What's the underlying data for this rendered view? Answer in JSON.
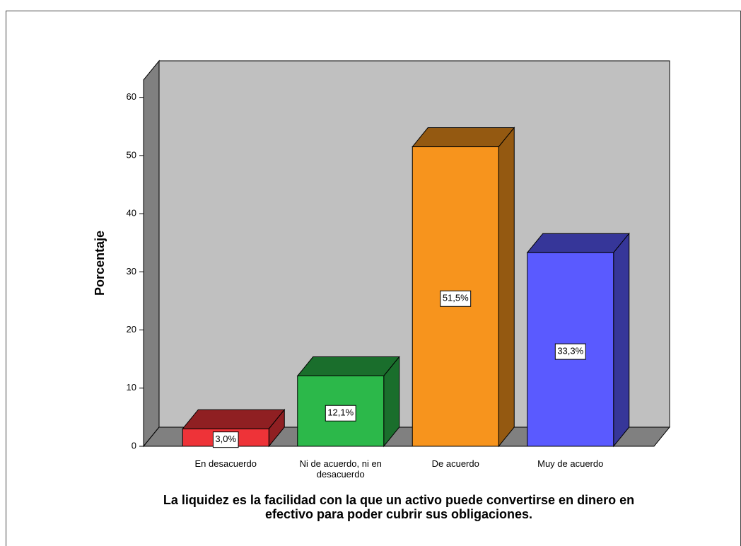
{
  "chart_data": {
    "type": "bar3d",
    "ylabel": "Porcentaje",
    "xlabel": "La liquidez es la facilidad con la que un activo puede convertirse en dinero en efectivo para poder cubrir sus obligaciones.",
    "categories": [
      "En desacuerdo",
      "Ni de acuerdo, ni en desacuerdo",
      "De acuerdo",
      "Muy de acuerdo"
    ],
    "values": [
      3.0,
      12.1,
      51.5,
      33.3
    ],
    "value_labels": [
      "3,0%",
      "12,1%",
      "51,5%",
      "33,3%"
    ],
    "colors": [
      "#ee3338",
      "#2cb84a",
      "#f7941d",
      "#5a5aff"
    ],
    "ylim": [
      0,
      63
    ],
    "yticks": [
      0,
      10,
      20,
      30,
      40,
      50,
      60
    ]
  }
}
